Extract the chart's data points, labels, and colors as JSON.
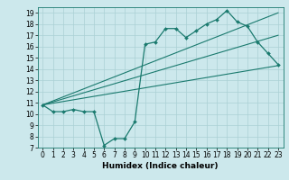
{
  "title": "",
  "xlabel": "Humidex (Indice chaleur)",
  "bg_color": "#cce8ec",
  "line_color": "#1a7a6e",
  "grid_color": "#aad0d5",
  "xlim": [
    -0.5,
    23.5
  ],
  "ylim": [
    7,
    19.5
  ],
  "xticks": [
    0,
    1,
    2,
    3,
    4,
    5,
    6,
    7,
    8,
    9,
    10,
    11,
    12,
    13,
    14,
    15,
    16,
    17,
    18,
    19,
    20,
    21,
    22,
    23
  ],
  "yticks": [
    7,
    8,
    9,
    10,
    11,
    12,
    13,
    14,
    15,
    16,
    17,
    18,
    19
  ],
  "main_x": [
    0,
    1,
    2,
    3,
    4,
    5,
    6,
    7,
    8,
    9,
    10,
    11,
    12,
    13,
    14,
    15,
    16,
    17,
    18,
    19,
    20,
    21,
    22,
    23
  ],
  "main_y": [
    10.8,
    10.2,
    10.2,
    10.4,
    10.2,
    10.2,
    7.2,
    7.8,
    7.8,
    9.3,
    16.2,
    16.4,
    17.6,
    17.6,
    16.8,
    17.4,
    18.0,
    18.4,
    19.2,
    18.2,
    17.8,
    16.4,
    15.4,
    14.4
  ],
  "trend1_x": [
    0,
    23
  ],
  "trend1_y": [
    10.8,
    19.0
  ],
  "trend2_x": [
    0,
    23
  ],
  "trend2_y": [
    10.8,
    14.3
  ],
  "trend3_x": [
    0,
    23
  ],
  "trend3_y": [
    10.8,
    17.0
  ],
  "tick_fontsize": 5.5,
  "xlabel_fontsize": 6.5
}
